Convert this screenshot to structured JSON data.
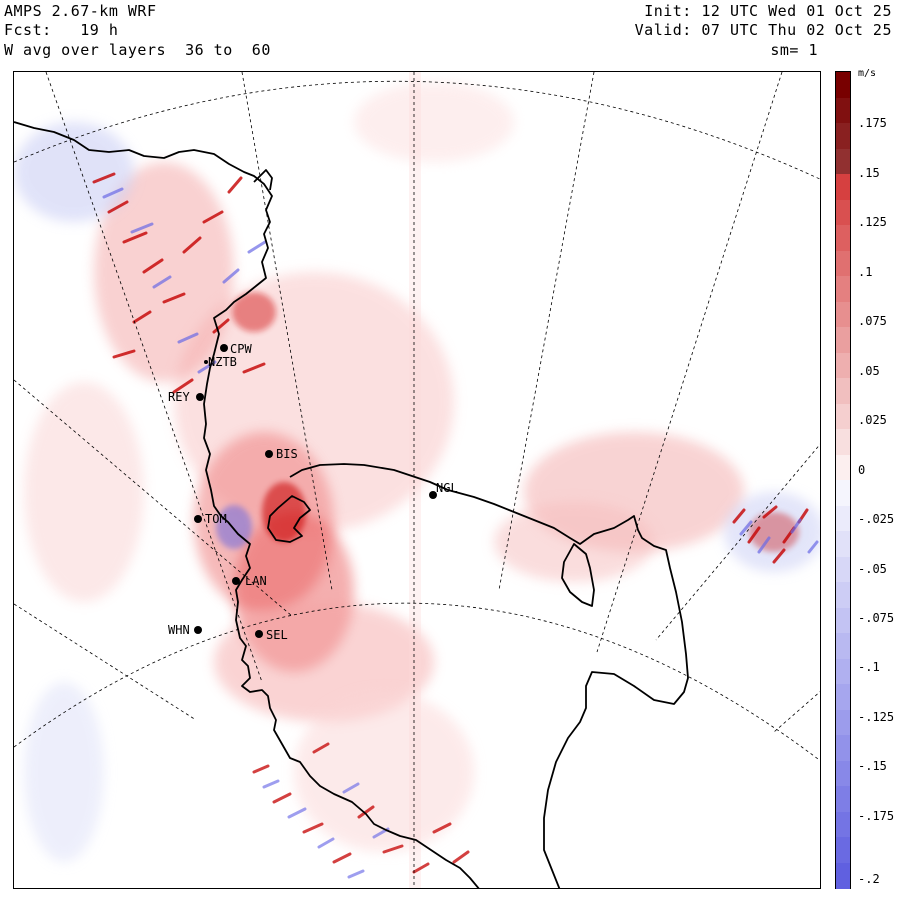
{
  "header": {
    "model": "AMPS 2.67-km WRF",
    "forecast": "Fcst:   19 h",
    "field": "W avg over layers  36 to  60",
    "init": "Init: 12 UTC Wed 01 Oct 25",
    "valid": "Valid: 07 UTC Thu 02 Oct 25",
    "smoothing": "sm= 1"
  },
  "colorbar": {
    "units": "m/s",
    "ticks": [
      ".175",
      ".15",
      ".125",
      ".1",
      ".075",
      ".05",
      ".025",
      "0",
      "-.025",
      "-.05",
      "-.075",
      "-.1",
      "-.125",
      "-.15",
      "-.175",
      "-.2"
    ],
    "range": [
      -0.2,
      0.2
    ],
    "positive_color": "#c80000",
    "negative_color": "#6060e0"
  },
  "stations": [
    {
      "id": "CPW",
      "label": "CPW"
    },
    {
      "id": "NZTB",
      "label": "NZTB"
    },
    {
      "id": "REY",
      "label": "REY"
    },
    {
      "id": "BIS",
      "label": "BIS"
    },
    {
      "id": "NGL",
      "label": "NGL"
    },
    {
      "id": "TOM",
      "label": "TOM"
    },
    {
      "id": "LAN",
      "label": "LAN"
    },
    {
      "id": "WHN",
      "label": "WHN"
    },
    {
      "id": "SEL",
      "label": "SEL"
    }
  ]
}
